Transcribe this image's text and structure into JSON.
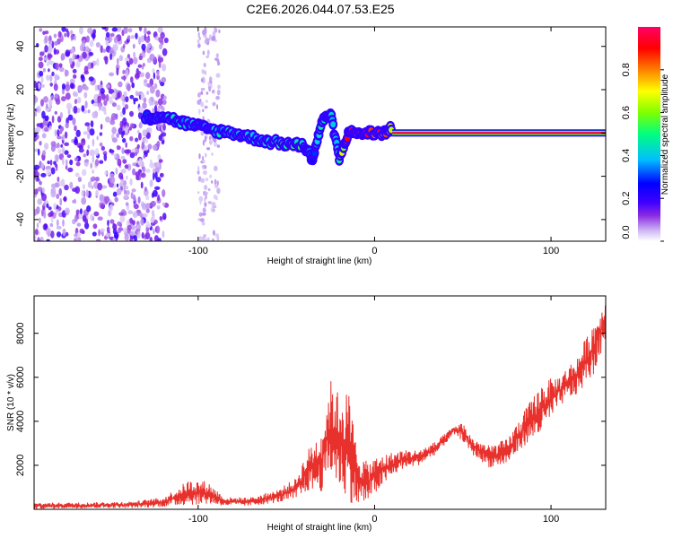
{
  "figure_title": "C2E6.2026.044.07.53.E25",
  "chart_data": [
    {
      "type": "heatmap",
      "title": "",
      "xlabel": "Height of straight line (km)",
      "ylabel": "Frequency (Hz)",
      "xlim": [
        -193,
        131
      ],
      "ylim": [
        -50,
        49
      ],
      "x_ticks": [
        -100,
        0,
        100
      ],
      "y_ticks": [
        -40,
        -20,
        0,
        20,
        40
      ],
      "colorbar": {
        "label": "Normalized spectral amplitude",
        "range": [
          0,
          1
        ],
        "ticks": [
          0.0,
          0.2,
          0.4,
          0.6,
          0.8
        ],
        "tick_labels": [
          "0.0",
          "0.2",
          "0.4",
          "0.6",
          "0.8"
        ],
        "colormap": [
          "#ffffff",
          "#cdb6f4",
          "#8a2be2",
          "#3f00ff",
          "#0000ff",
          "#00bfff",
          "#00ff7f",
          "#7fff00",
          "#ffff00",
          "#ff7f00",
          "#ff0000",
          "#ff0066"
        ]
      },
      "features": [
        {
          "name": "broadband noise",
          "x_range": [
            -193,
            -118
          ],
          "freq_range": [
            -50,
            49
          ],
          "amplitude": 0.1
        },
        {
          "name": "noise band",
          "x_range": [
            -100,
            -88
          ],
          "freq_range": [
            -50,
            49
          ],
          "amplitude": 0.05
        },
        {
          "name": "echo trace",
          "points": [
            {
              "x": -130,
              "freq": 7,
              "amp": 0.3
            },
            {
              "x": -120,
              "freq": 8,
              "amp": 0.45
            },
            {
              "x": -110,
              "freq": 5,
              "amp": 0.4
            },
            {
              "x": -100,
              "freq": 3,
              "amp": 0.35
            },
            {
              "x": -90,
              "freq": 1,
              "amp": 0.4
            },
            {
              "x": -80,
              "freq": 0,
              "amp": 0.45
            },
            {
              "x": -70,
              "freq": -2,
              "amp": 0.4
            },
            {
              "x": -60,
              "freq": -4,
              "amp": 0.45
            },
            {
              "x": -50,
              "freq": -5,
              "amp": 0.5
            },
            {
              "x": -40,
              "freq": -6,
              "amp": 0.55
            },
            {
              "x": -35,
              "freq": -12,
              "amp": 0.3
            },
            {
              "x": -30,
              "freq": 5,
              "amp": 0.5
            },
            {
              "x": -25,
              "freq": 9,
              "amp": 0.45
            },
            {
              "x": -20,
              "freq": -12,
              "amp": 0.5
            },
            {
              "x": -15,
              "freq": 0,
              "amp": 0.9
            },
            {
              "x": -5,
              "freq": 0,
              "amp": 0.95
            },
            {
              "x": 5,
              "freq": 0,
              "amp": 0.9
            },
            {
              "x": 10,
              "freq": 2,
              "amp": 0.6
            }
          ]
        },
        {
          "name": "head echo",
          "x_range": [
            10,
            131
          ],
          "freq": 0,
          "amplitude": 0.97
        }
      ]
    },
    {
      "type": "line",
      "title": "",
      "xlabel": "Height of straight line (km)",
      "ylabel": "SNR (10 * v/v)",
      "xlim": [
        -193,
        131
      ],
      "ylim": [
        0,
        9700
      ],
      "x_ticks": [
        -100,
        0,
        100
      ],
      "y_ticks": [
        2000,
        4000,
        6000,
        8000
      ],
      "series": [
        {
          "name": "SNR",
          "color": "#e8312c",
          "x": [
            -193,
            -160,
            -135,
            -120,
            -105,
            -95,
            -85,
            -70,
            -55,
            -45,
            -38,
            -30,
            -25,
            -20,
            -15,
            -10,
            -5,
            5,
            15,
            25,
            35,
            45,
            50,
            55,
            65,
            75,
            85,
            95,
            105,
            115,
            125,
            131
          ],
          "y_low": [
            20,
            50,
            60,
            100,
            200,
            220,
            150,
            150,
            300,
            400,
            800,
            800,
            1500,
            900,
            400,
            100,
            200,
            1100,
            1800,
            2000,
            2500,
            3400,
            3100,
            2500,
            1900,
            2000,
            2900,
            3400,
            4700,
            5200,
            6200,
            7800
          ],
          "y_high": [
            300,
            320,
            380,
            550,
            1350,
            1300,
            550,
            550,
            900,
            1400,
            2700,
            3700,
            5900,
            5300,
            5500,
            2900,
            2200,
            2500,
            2700,
            2700,
            3100,
            3800,
            3950,
            3300,
            2900,
            3200,
            4500,
            5800,
            6100,
            7000,
            8700,
            9500
          ]
        }
      ]
    }
  ]
}
